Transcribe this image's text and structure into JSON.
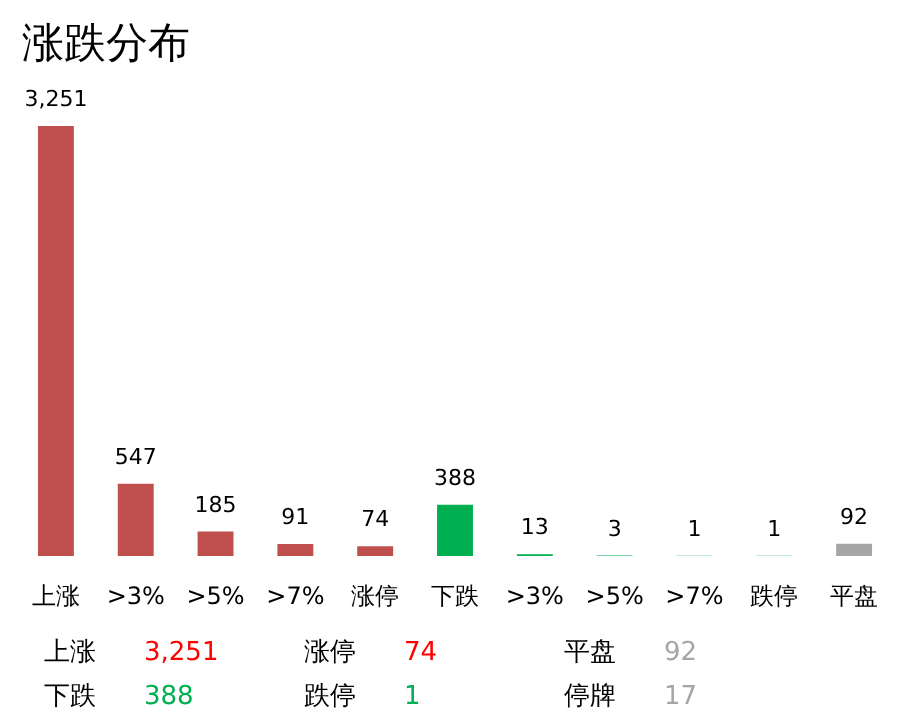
{
  "chart_data": {
    "type": "bar",
    "title": "涨跌分布",
    "categories": [
      "上涨",
      ">3%",
      ">5%",
      ">7%",
      "涨停",
      "下跌",
      ">3%",
      ">5%",
      ">7%",
      "跌停",
      "平盘"
    ],
    "values": [
      3251,
      547,
      185,
      91,
      74,
      388,
      13,
      3,
      1,
      1,
      92
    ],
    "value_labels": [
      "3,251",
      "547",
      "185",
      "91",
      "74",
      "388",
      "13",
      "3",
      "1",
      "1",
      "92"
    ],
    "colors": [
      "#c0504d",
      "#c0504d",
      "#c0504d",
      "#c0504d",
      "#c0504d",
      "#00b050",
      "#00b050",
      "#00b050",
      "#00b050",
      "#00b050",
      "#a6a6a6"
    ],
    "annotations": [
      "上涨",
      "3,251",
      "下跌",
      "388",
      "涨停",
      "74",
      "跌停",
      "1",
      "平盘",
      "92",
      "停牌",
      "17"
    ]
  }
}
